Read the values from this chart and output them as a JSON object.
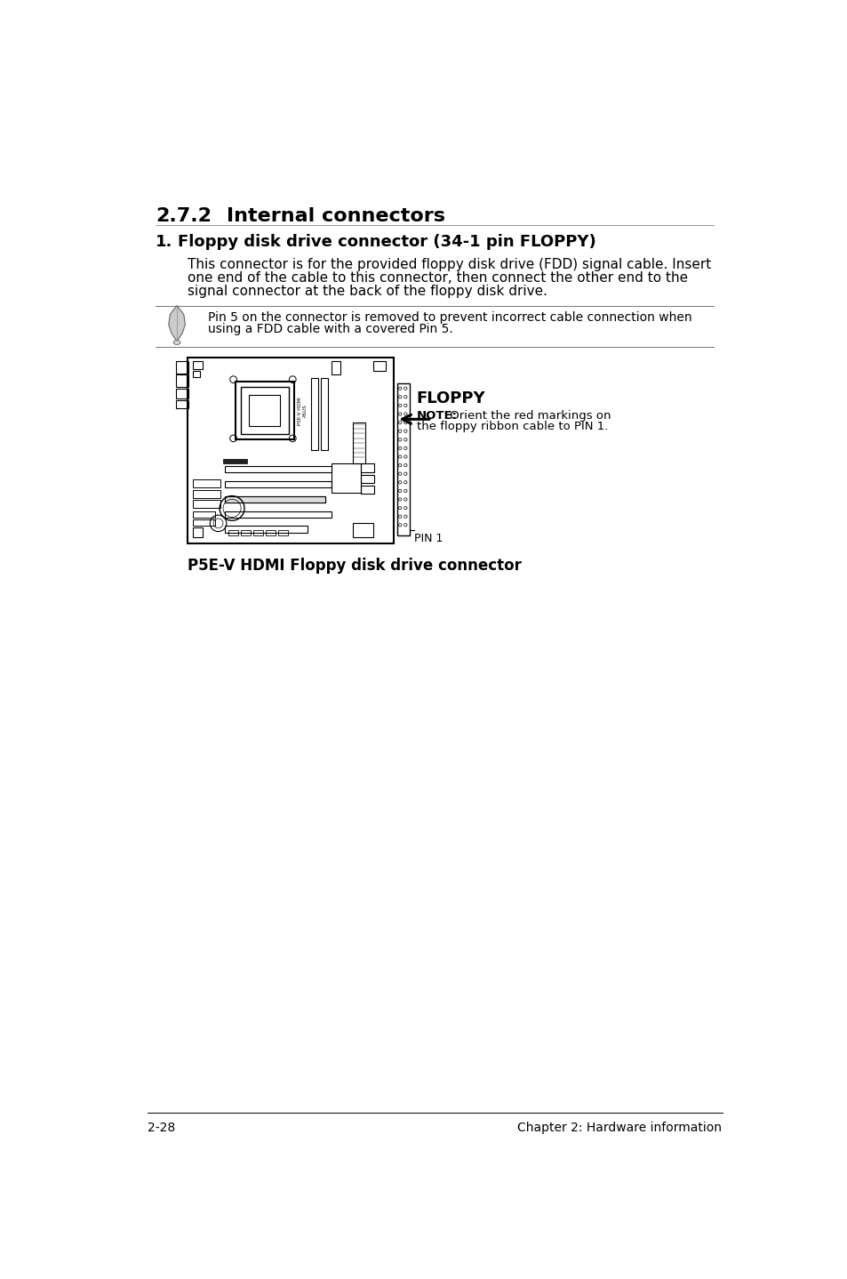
{
  "bg_color": "#ffffff",
  "section_title_num": "2.7.2",
  "section_title_text": "Internal connectors",
  "item_number": "1.",
  "item_title": "Floppy disk drive connector (34-1 pin FLOPPY)",
  "body_line1": "This connector is for the provided floppy disk drive (FDD) signal cable. Insert",
  "body_line2": "one end of the cable to this connector, then connect the other end to the",
  "body_line3": "signal connector at the back of the floppy disk drive.",
  "note_text_line1": "Pin 5 on the connector is removed to prevent incorrect cable connection when",
  "note_text_line2": "using a FDD cable with a covered Pin 5.",
  "floppy_label": "FLOPPY",
  "note_label": "NOTE:",
  "note_detail_1": " Orient the red markings on",
  "note_detail_2": "the floppy ribbon cable to PIN 1.",
  "pin1_label": "PIN 1",
  "caption": "P5E-V HDMI Floppy disk drive connector",
  "footer_left": "2-28",
  "footer_right": "Chapter 2: Hardware information"
}
